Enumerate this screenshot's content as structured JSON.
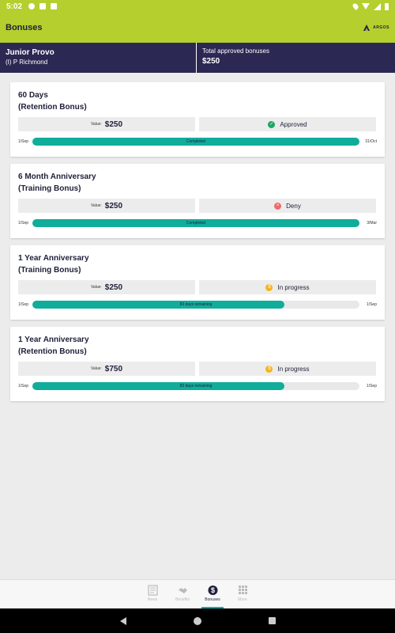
{
  "status_bar": {
    "time": "5:02"
  },
  "app_bar": {
    "title": "Bonuses",
    "logo_text": "ARGOS"
  },
  "header": {
    "name": "Junior Provo",
    "location": "(I) P Richmond",
    "total_label": "Total approved bonuses",
    "total_value": "$250"
  },
  "cards": [
    {
      "title1": "60 Days",
      "title2": "(Retention  Bonus)",
      "value_label": "Value:",
      "value": "$250",
      "status": "Approved",
      "status_type": "approved",
      "start": "1/Sep",
      "end": "31/Oct",
      "progress": 1.0,
      "progress_text": "Completed"
    },
    {
      "title1": "6 Month Anniversary",
      "title2": "(Training Bonus)",
      "value_label": "Value:",
      "value": "$250",
      "status": "Deny",
      "status_type": "deny",
      "start": "1/Sep",
      "end": "3/Mar",
      "progress": 1.0,
      "progress_text": "Completed"
    },
    {
      "title1": "1 Year Anniversary",
      "title2": "(Training Bonus)",
      "value_label": "Value:",
      "value": "$250",
      "status": "In progress",
      "status_type": "progress",
      "start": "1/Sep",
      "end": "1/Sep",
      "progress": 0.77,
      "progress_text": "83 days remaining"
    },
    {
      "title1": "1 Year Anniversary",
      "title2": "(Retention  Bonus)",
      "value_label": "Value:",
      "value": "$750",
      "status": "In progress",
      "status_type": "progress",
      "start": "1/Sep",
      "end": "1/Sep",
      "progress": 0.77,
      "progress_text": "83 days remaining"
    }
  ],
  "bottom_nav": [
    {
      "label": "News",
      "icon": "news-icon"
    },
    {
      "label": "Benefits",
      "icon": "handshake-icon"
    },
    {
      "label": "Bonuses",
      "icon": "dollar-icon",
      "active": true
    },
    {
      "label": "More",
      "icon": "grid-icon"
    }
  ],
  "colors": {
    "accent": "#b4cf2e",
    "header": "#2b2853",
    "progress": "#10ad9b"
  }
}
